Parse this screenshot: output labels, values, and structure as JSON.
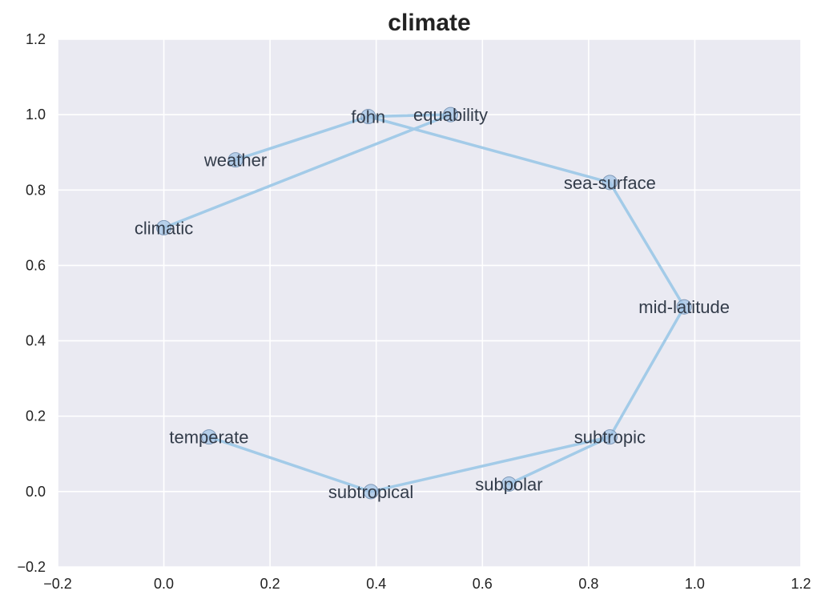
{
  "chart_data": {
    "type": "line",
    "title": "climate",
    "xlabel": "",
    "ylabel": "",
    "xlim": [
      -0.2,
      1.2
    ],
    "ylim": [
      -0.2,
      1.2
    ],
    "xticks": [
      "−0.2",
      "0.0",
      "0.2",
      "0.4",
      "0.6",
      "0.8",
      "1.0",
      "1.2"
    ],
    "yticks": [
      "−0.2",
      "0.0",
      "0.2",
      "0.4",
      "0.6",
      "0.8",
      "1.0",
      "1.2"
    ],
    "grid": true,
    "colors": {
      "background": "#eaeaf2",
      "grid": "#ffffff",
      "line": "#a3cbe8",
      "marker": "#a3c4e6",
      "marker_edge": "#7f99b8",
      "label": "#333c4a"
    },
    "series": [
      {
        "points": [
          {
            "label": "climatic",
            "x": 0.0,
            "y": 0.7
          },
          {
            "label": "equability",
            "x": 0.54,
            "y": 1.0
          },
          {
            "label": "fohn",
            "x": 0.385,
            "y": 0.995
          },
          {
            "label": "weather",
            "x": 0.135,
            "y": 0.88
          },
          {
            "label": "fohn",
            "x": 0.385,
            "y": 0.995
          },
          {
            "label": "sea-surface",
            "x": 0.84,
            "y": 0.82
          },
          {
            "label": "mid-latitude",
            "x": 0.98,
            "y": 0.49
          },
          {
            "label": "subtropic",
            "x": 0.84,
            "y": 0.145
          },
          {
            "label": "subpolar",
            "x": 0.65,
            "y": 0.02
          },
          {
            "label": "subtropic",
            "x": 0.84,
            "y": 0.145
          },
          {
            "label": "subtropical",
            "x": 0.39,
            "y": 0.0
          },
          {
            "label": "temperate",
            "x": 0.085,
            "y": 0.145
          }
        ]
      }
    ],
    "labeled_points": [
      {
        "label": "climatic",
        "x": 0.0,
        "y": 0.7
      },
      {
        "label": "equability",
        "x": 0.54,
        "y": 1.0
      },
      {
        "label": "fohn",
        "x": 0.385,
        "y": 0.995
      },
      {
        "label": "weather",
        "x": 0.135,
        "y": 0.88
      },
      {
        "label": "sea-surface",
        "x": 0.84,
        "y": 0.82
      },
      {
        "label": "mid-latitude",
        "x": 0.98,
        "y": 0.49
      },
      {
        "label": "subtropic",
        "x": 0.84,
        "y": 0.145
      },
      {
        "label": "subpolar",
        "x": 0.65,
        "y": 0.02
      },
      {
        "label": "subtropical",
        "x": 0.39,
        "y": 0.0
      },
      {
        "label": "temperate",
        "x": 0.085,
        "y": 0.145
      }
    ]
  }
}
